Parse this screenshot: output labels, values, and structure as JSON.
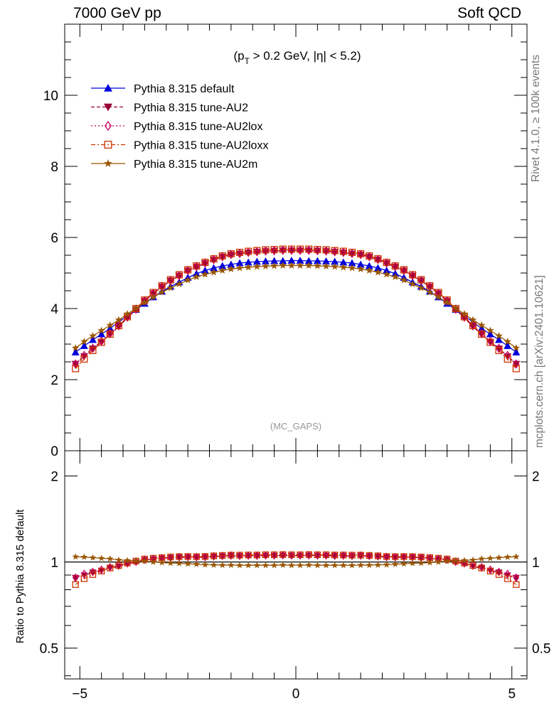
{
  "header": {
    "left_label": "7000 GeV pp",
    "right_label": "Soft QCD"
  },
  "side_labels": {
    "rivet": "Rivet 4.1.0, ≥ 100k events",
    "mcplots": "mcplots.cern.ch [arXiv:2401.10621]"
  },
  "chart_data": {
    "type": "line",
    "cut_label": {
      "prefix": "(p",
      "sub": "T",
      "suffix": " > 0.2 GeV, |η| < 5.2)"
    },
    "watermark": "(MC_GAPS)",
    "x": [
      -5.1,
      -4.9,
      -4.7,
      -4.5,
      -4.3,
      -4.1,
      -3.9,
      -3.7,
      -3.5,
      -3.3,
      -3.1,
      -2.9,
      -2.7,
      -2.5,
      -2.3,
      -2.1,
      -1.9,
      -1.7,
      -1.5,
      -1.3,
      -1.1,
      -0.9,
      -0.7,
      -0.5,
      -0.3,
      -0.1,
      0.1,
      0.3,
      0.5,
      0.7,
      0.9,
      1.1,
      1.3,
      1.5,
      1.7,
      1.9,
      2.1,
      2.3,
      2.5,
      2.7,
      2.9,
      3.1,
      3.3,
      3.5,
      3.7,
      3.9,
      4.1,
      4.3,
      4.5,
      4.7,
      4.9,
      5.1
    ],
    "main_panel": {
      "xlim": [
        -5.35,
        5.35
      ],
      "ylim": [
        0,
        12
      ],
      "yticks": [
        0,
        2,
        4,
        6,
        8,
        10
      ],
      "ytick_labels": [
        "0",
        "2",
        "4",
        "6",
        "8",
        "10"
      ]
    },
    "ratio_panel": {
      "ylabel": "Ratio to Pythia 8.315 default",
      "ylim": [
        0.39,
        2.45
      ],
      "ytick_values": [
        0.5,
        1,
        2
      ],
      "ytick_labels": [
        "0.5",
        "1",
        "2"
      ],
      "xtick_values": [
        -5,
        0,
        5
      ],
      "xtick_labels": [
        "−5",
        "0",
        "5"
      ]
    },
    "series": [
      {
        "name": "Pythia 8.315 default",
        "color": "#0000dd",
        "marker": "triangle-up",
        "dash": "solid",
        "values": [
          2.77,
          2.95,
          3.12,
          3.28,
          3.44,
          3.62,
          3.8,
          3.97,
          4.14,
          4.32,
          4.48,
          4.62,
          4.74,
          4.87,
          4.98,
          5.07,
          5.14,
          5.2,
          5.24,
          5.28,
          5.3,
          5.32,
          5.33,
          5.34,
          5.34,
          5.35,
          5.35,
          5.34,
          5.34,
          5.33,
          5.32,
          5.3,
          5.28,
          5.24,
          5.2,
          5.14,
          5.07,
          4.98,
          4.87,
          4.74,
          4.62,
          4.48,
          4.32,
          4.14,
          3.97,
          3.8,
          3.62,
          3.44,
          3.28,
          3.12,
          2.95,
          2.77
        ]
      },
      {
        "name": "Pythia 8.315 tune-AU2",
        "color": "#990033",
        "marker": "triangle-down",
        "dash": "5,3",
        "values": [
          2.44,
          2.65,
          2.87,
          3.06,
          3.27,
          3.49,
          3.74,
          3.97,
          4.21,
          4.42,
          4.61,
          4.78,
          4.92,
          5.06,
          5.17,
          5.27,
          5.37,
          5.45,
          5.51,
          5.54,
          5.57,
          5.59,
          5.61,
          5.62,
          5.63,
          5.63,
          5.63,
          5.63,
          5.62,
          5.61,
          5.59,
          5.57,
          5.54,
          5.51,
          5.45,
          5.37,
          5.27,
          5.17,
          5.06,
          4.92,
          4.78,
          4.61,
          4.42,
          4.21,
          3.97,
          3.74,
          3.49,
          3.27,
          3.06,
          2.87,
          2.65,
          2.44
        ]
      },
      {
        "name": "Pythia 8.315 tune-AU2lox",
        "color": "#cc0066",
        "marker": "diamond-open",
        "dash": "2,3",
        "values": [
          2.44,
          2.68,
          2.88,
          3.08,
          3.3,
          3.52,
          3.76,
          3.98,
          4.22,
          4.43,
          4.62,
          4.79,
          4.93,
          5.07,
          5.18,
          5.28,
          5.38,
          5.46,
          5.52,
          5.55,
          5.58,
          5.6,
          5.62,
          5.63,
          5.64,
          5.64,
          5.64,
          5.64,
          5.63,
          5.62,
          5.6,
          5.58,
          5.55,
          5.52,
          5.46,
          5.38,
          5.28,
          5.18,
          5.07,
          4.93,
          4.79,
          4.62,
          4.43,
          4.22,
          3.98,
          3.76,
          3.52,
          3.3,
          3.08,
          2.88,
          2.68,
          2.44
        ]
      },
      {
        "name": "Pythia 8.315 tune-AU2loxx",
        "color": "#cc3300",
        "marker": "square-open",
        "dash": "6,3,2,3",
        "values": [
          2.31,
          2.58,
          2.82,
          3.05,
          3.28,
          3.52,
          3.77,
          4.0,
          4.24,
          4.45,
          4.64,
          4.81,
          4.95,
          5.09,
          5.2,
          5.3,
          5.4,
          5.48,
          5.54,
          5.58,
          5.61,
          5.63,
          5.65,
          5.66,
          5.67,
          5.67,
          5.67,
          5.67,
          5.66,
          5.65,
          5.63,
          5.61,
          5.58,
          5.54,
          5.48,
          5.4,
          5.3,
          5.2,
          5.09,
          4.95,
          4.81,
          4.64,
          4.45,
          4.24,
          4.0,
          3.77,
          3.52,
          3.28,
          3.05,
          2.82,
          2.58,
          2.31
        ]
      },
      {
        "name": "Pythia 8.315 tune-AU2m",
        "color": "#995500",
        "marker": "star",
        "dash": "solid",
        "values": [
          2.89,
          3.07,
          3.23,
          3.38,
          3.53,
          3.68,
          3.85,
          4.01,
          4.17,
          4.32,
          4.46,
          4.58,
          4.69,
          4.8,
          4.89,
          4.96,
          5.02,
          5.07,
          5.11,
          5.14,
          5.16,
          5.18,
          5.19,
          5.2,
          5.21,
          5.21,
          5.21,
          5.21,
          5.2,
          5.19,
          5.18,
          5.16,
          5.14,
          5.11,
          5.07,
          5.02,
          4.96,
          4.89,
          4.8,
          4.69,
          4.58,
          4.46,
          4.32,
          4.17,
          4.01,
          3.85,
          3.68,
          3.53,
          3.38,
          3.23,
          3.07,
          2.89
        ]
      }
    ]
  }
}
